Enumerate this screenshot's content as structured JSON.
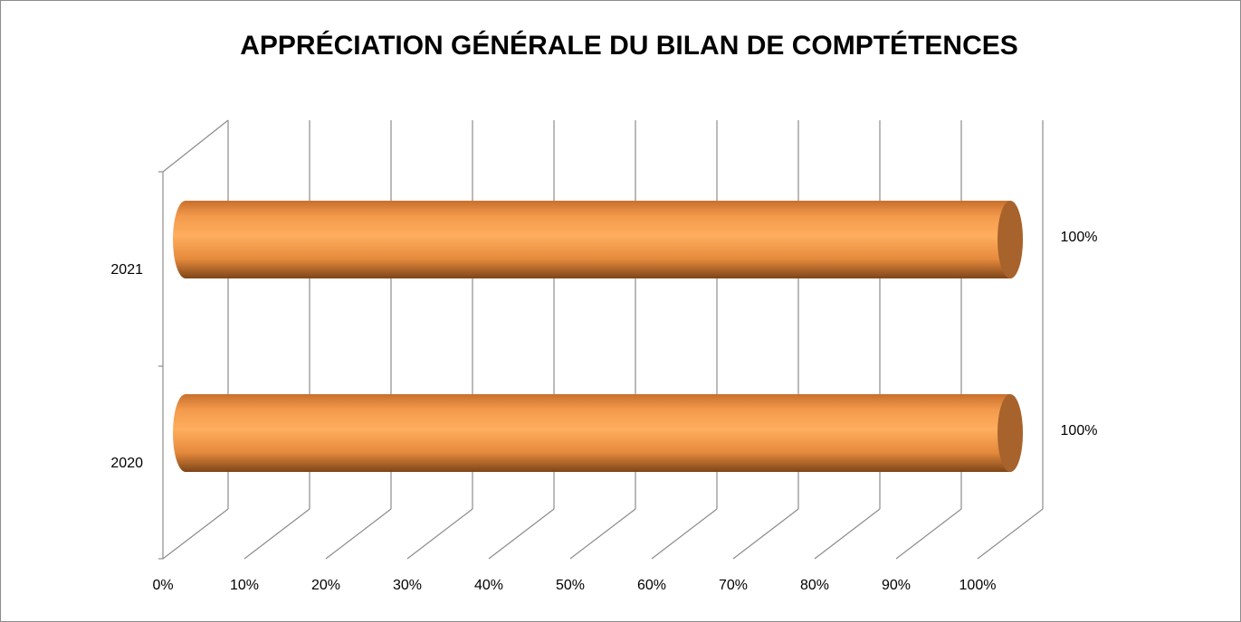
{
  "chart_data": {
    "type": "bar3d",
    "title": "APPRÉCIATION GÉNÉRALE DU BILAN DE COMPTÉTENCES",
    "categories": [
      "2020",
      "2021"
    ],
    "values": [
      100,
      100
    ],
    "value_labels": [
      "100%",
      "100%"
    ],
    "color": "#f79646",
    "xlim": [
      0,
      100
    ],
    "xticks": [
      {
        "value": 0,
        "label": "0%"
      },
      {
        "value": 10,
        "label": "10%"
      },
      {
        "value": 20,
        "label": "20%"
      },
      {
        "value": 30,
        "label": "30%"
      },
      {
        "value": 40,
        "label": "40%"
      },
      {
        "value": 50,
        "label": "50%"
      },
      {
        "value": 60,
        "label": "60%"
      },
      {
        "value": 70,
        "label": "70%"
      },
      {
        "value": 80,
        "label": "80%"
      },
      {
        "value": 90,
        "label": "90%"
      },
      {
        "value": 100,
        "label": "100%"
      }
    ],
    "grid": true
  }
}
